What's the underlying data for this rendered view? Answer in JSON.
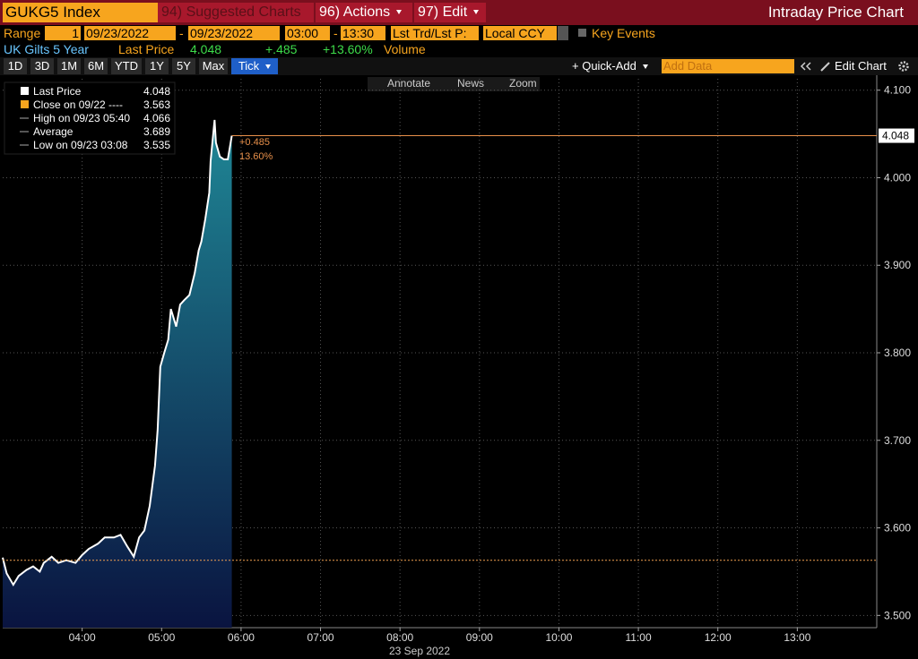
{
  "header": {
    "ticker": "GUKG5 Index",
    "suggested": "94) Suggested Charts",
    "actions": "96) Actions",
    "edit": "97) Edit",
    "title": "Intraday Price Chart"
  },
  "range_bar": {
    "range": "Range",
    "periods": "1",
    "start_date": "09/23/2022",
    "dash1": "-",
    "end_date": "09/23/2022",
    "start_time": "03:00",
    "dash2": "-",
    "end_time": "13:30",
    "price_type": "Lst Trd/Lst P:",
    "currency": "Local CCY",
    "key_events": "Key Events"
  },
  "quote": {
    "name": "UK Gilts 5 Year",
    "label": "Last Price",
    "last": "4.048",
    "change": "+.485",
    "pct": "+13.60%",
    "volume": "Volume"
  },
  "toolbar": {
    "periods": [
      "1D",
      "3D",
      "1M",
      "6M",
      "YTD",
      "1Y",
      "5Y",
      "Max",
      "Tick"
    ],
    "quick_add": "+ Quick-Add",
    "add_data": "Add Data",
    "edit_chart": "Edit Chart"
  },
  "chart_tools": [
    "Annotate",
    "News",
    "Zoom"
  ],
  "chart_data": {
    "type": "line",
    "x": [
      180,
      183,
      188,
      192,
      198,
      203,
      208,
      211,
      217,
      222,
      228,
      235,
      240,
      245,
      252,
      257,
      264,
      269,
      274,
      279,
      283,
      287,
      291,
      295,
      297,
      299,
      302,
      305,
      307,
      311,
      314,
      317,
      321,
      325,
      328,
      330,
      333,
      336,
      337,
      340,
      341,
      344,
      347,
      350,
      353
    ],
    "series": [
      {
        "color": "#ffffff",
        "values": [
          3.566,
          3.548,
          3.535,
          3.545,
          3.552,
          3.556,
          3.55,
          3.56,
          3.567,
          3.56,
          3.563,
          3.56,
          3.569,
          3.576,
          3.582,
          3.589,
          3.589,
          3.592,
          3.579,
          3.567,
          3.589,
          3.597,
          3.625,
          3.671,
          3.712,
          3.784,
          3.8,
          3.815,
          3.85,
          3.83,
          3.855,
          3.86,
          3.866,
          3.891,
          3.917,
          3.927,
          3.953,
          3.983,
          4.019,
          4.066,
          4.04,
          4.024,
          4.021,
          4.021,
          4.048
        ]
      }
    ],
    "area_colors": [
      "#1f8796",
      "#0a1440"
    ],
    "xlim": [
      180,
      840
    ],
    "xticks": [
      {
        "value": 240,
        "label": "04:00"
      },
      {
        "value": 300,
        "label": "05:00"
      },
      {
        "value": 360,
        "label": "06:00"
      },
      {
        "value": 420,
        "label": "07:00"
      },
      {
        "value": 480,
        "label": "08:00"
      },
      {
        "value": 540,
        "label": "09:00"
      },
      {
        "value": 600,
        "label": "10:00"
      },
      {
        "value": 660,
        "label": "11:00"
      },
      {
        "value": 720,
        "label": "12:00"
      },
      {
        "value": 780,
        "label": "13:00"
      }
    ],
    "x_label": "23 Sep 2022",
    "ylim": [
      3.486,
      4.113
    ],
    "yticks": [
      {
        "value": 3.5,
        "label": "3.500"
      },
      {
        "value": 3.6,
        "label": "3.600"
      },
      {
        "value": 3.7,
        "label": "3.700"
      },
      {
        "value": 3.8,
        "label": "3.800"
      },
      {
        "value": 3.9,
        "label": "3.900"
      },
      {
        "value": 4.0,
        "label": "4.000"
      },
      {
        "value": 4.1,
        "label": "4.100"
      }
    ],
    "grid": true,
    "legend": [
      {
        "label": "Last Price",
        "value": 4.048
      },
      {
        "label": "Close on 09/22 ----",
        "value": 3.563
      },
      {
        "label": "High on 09/23 05:40",
        "value": 4.066
      },
      {
        "label": "Average",
        "value": 3.689
      },
      {
        "label": "Low on 09/23 03:08",
        "value": 3.535
      }
    ],
    "annotations": [
      "+0.485",
      "13.60%"
    ]
  }
}
